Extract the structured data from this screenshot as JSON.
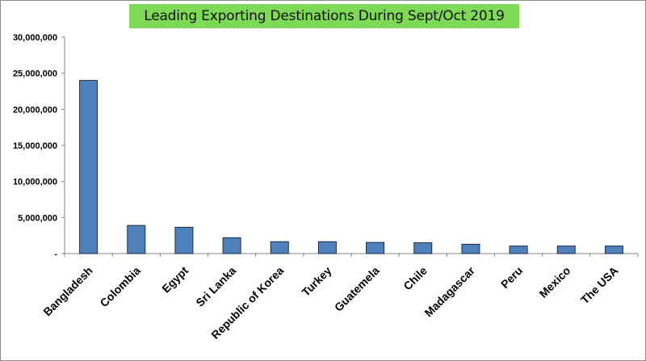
{
  "chart_data": {
    "type": "bar",
    "title": "Leading Exporting Destinations  During Sept/Oct 2019",
    "xlabel": "",
    "ylabel": "",
    "categories": [
      "Bangladesh",
      "Colombia",
      "Egypt",
      "Sri Lanka",
      "Republic of Korea",
      "Turkey",
      "Guatemela",
      "Chile",
      "Madagascar",
      "Peru",
      "Mexico",
      "The USA"
    ],
    "values": [
      24000000,
      3900000,
      3650000,
      2200000,
      1650000,
      1650000,
      1550000,
      1500000,
      1300000,
      1050000,
      1050000,
      1050000
    ],
    "ylim": [
      0,
      30000000
    ],
    "yticks": [
      {
        "value": 0,
        "label": "-"
      },
      {
        "value": 5000000,
        "label": "5,000,000"
      },
      {
        "value": 10000000,
        "label": "10,000,000"
      },
      {
        "value": 15000000,
        "label": "15,000,000"
      },
      {
        "value": 20000000,
        "label": "20,000,000"
      },
      {
        "value": 25000000,
        "label": "25,000,000"
      },
      {
        "value": 30000000,
        "label": "30,000,000"
      }
    ],
    "bar_color": "#4f81bd",
    "bar_edge_color": "#1f2d44",
    "title_background": "#7ed957",
    "grid": false,
    "legend": "none"
  }
}
